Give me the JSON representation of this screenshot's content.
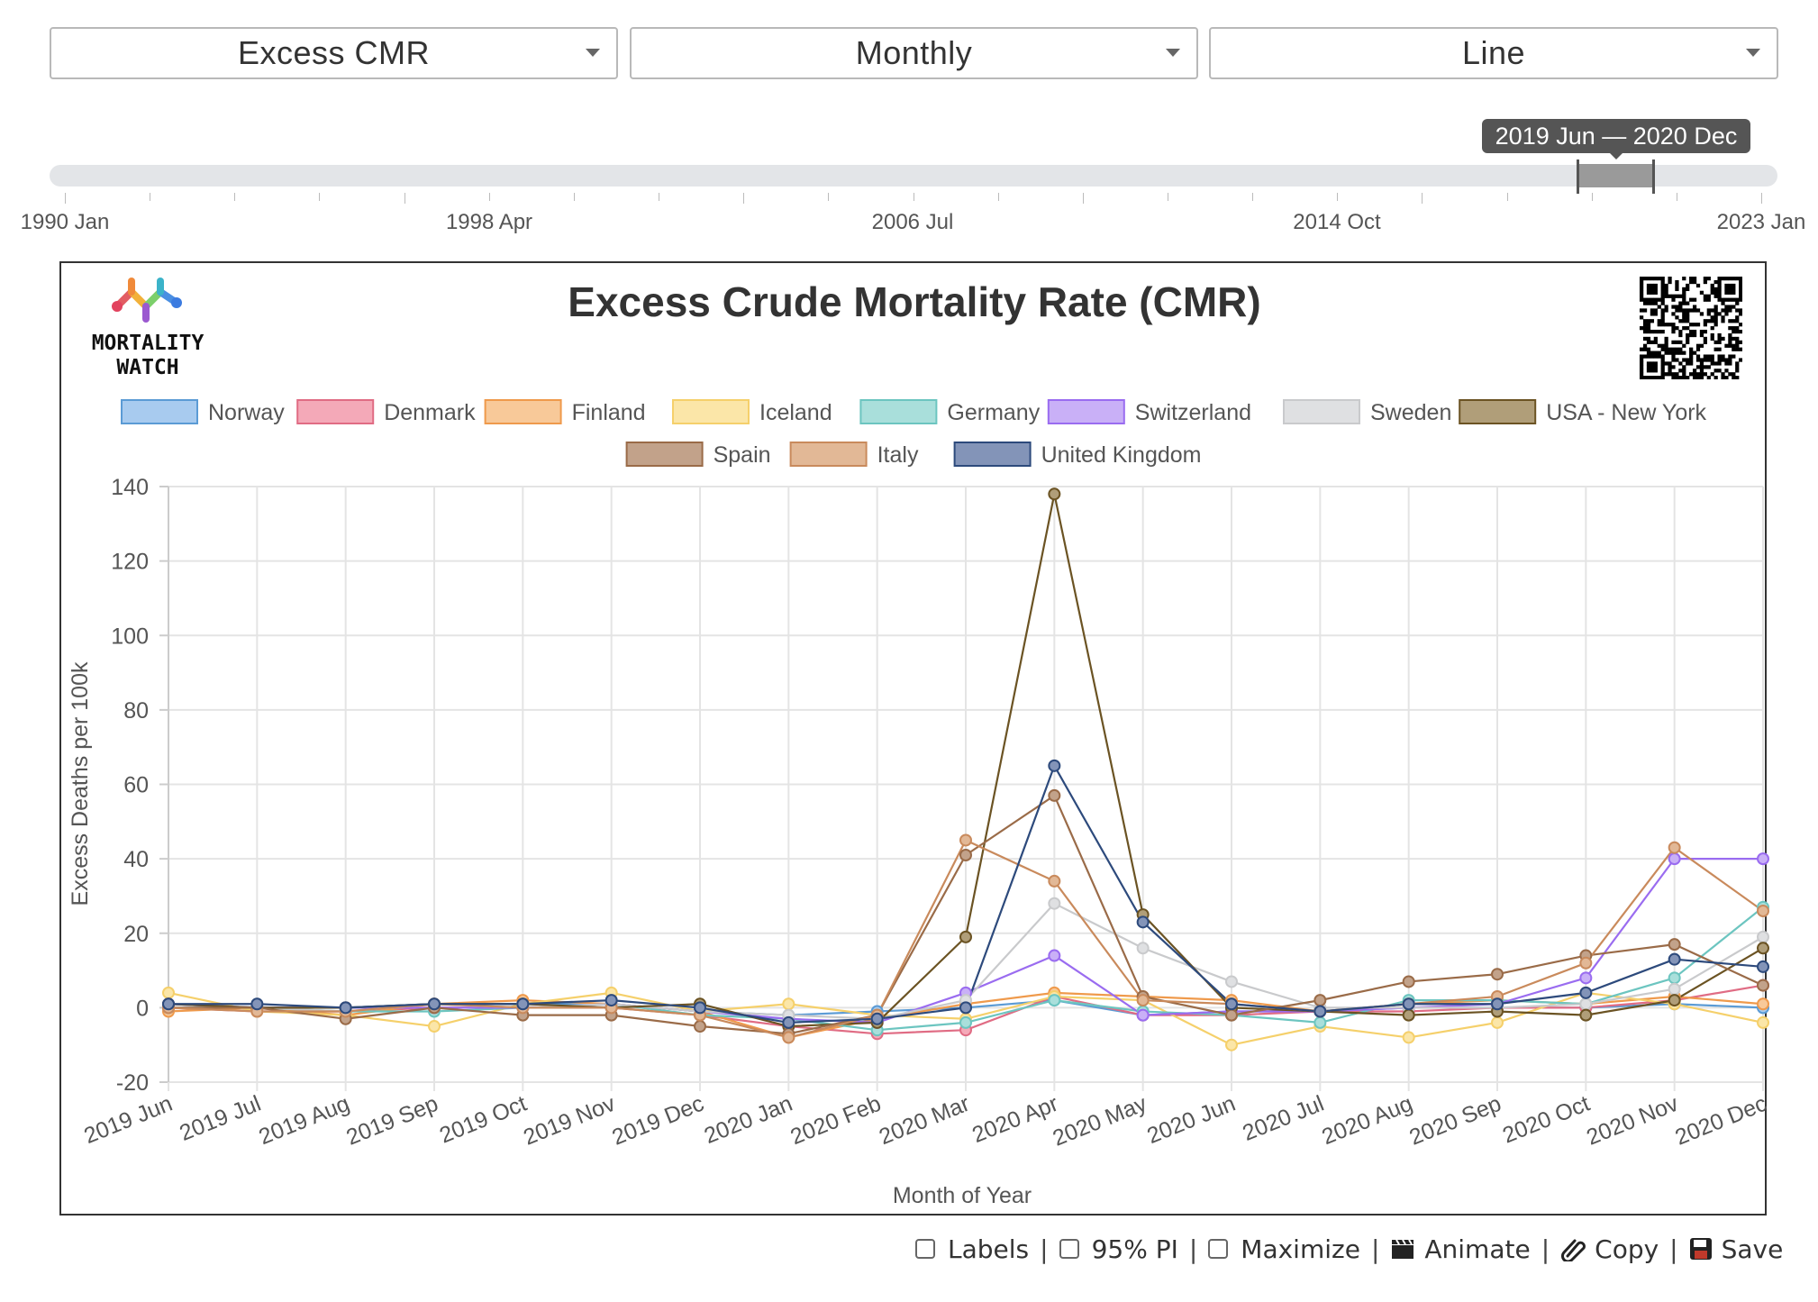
{
  "controls": {
    "metric": {
      "selected": "Excess CMR"
    },
    "period": {
      "selected": "Monthly"
    },
    "chart_type": {
      "selected": "Line"
    }
  },
  "range_slider": {
    "tooltip": "2019 Jun — 2020 Dec",
    "tick_labels": [
      "1990 Jan",
      "1998 Apr",
      "2006 Jul",
      "2014 Oct",
      "2023 Jan"
    ]
  },
  "logo": {
    "text": "MORTALITY\nWATCH"
  },
  "footer": {
    "labels": "Labels",
    "pi": "95% PI",
    "maximize": "Maximize",
    "animate": "Animate",
    "copy": "Copy",
    "save": "Save",
    "separator": "|"
  },
  "chart_data": {
    "type": "line",
    "title": "Excess Crude Mortality Rate (CMR)",
    "xlabel": "Month of Year",
    "ylabel": "Excess Deaths per 100k",
    "ylim": [
      -20,
      140
    ],
    "yticks": [
      -20,
      0,
      20,
      40,
      60,
      80,
      100,
      120,
      140
    ],
    "grid": true,
    "legend_position": "top",
    "categories": [
      "2019 Jun",
      "2019 Jul",
      "2019 Aug",
      "2019 Sep",
      "2019 Oct",
      "2019 Nov",
      "2019 Dec",
      "2020 Jan",
      "2020 Feb",
      "2020 Mar",
      "2020 Apr",
      "2020 May",
      "2020 Jun",
      "2020 Jul",
      "2020 Aug",
      "2020 Sep",
      "2020 Oct",
      "2020 Nov",
      "2020 Dec"
    ],
    "series": [
      {
        "name": "Norway",
        "color": "#5b9bd5",
        "fill": "#a8cbef",
        "values": [
          1,
          0,
          0,
          1,
          1,
          1,
          -1,
          -2,
          -1,
          0,
          2,
          -2,
          -1,
          -1,
          0,
          0,
          0,
          1,
          0
        ]
      },
      {
        "name": "Denmark",
        "color": "#e06c84",
        "fill": "#f4a9b8",
        "values": [
          0,
          -1,
          -1,
          0,
          0,
          0,
          -2,
          -5,
          -7,
          -6,
          3,
          -2,
          -2,
          -1,
          -1,
          0,
          0,
          2,
          6
        ]
      },
      {
        "name": "Finland",
        "color": "#ef9a4c",
        "fill": "#f8c999",
        "values": [
          -1,
          0,
          -2,
          1,
          2,
          1,
          -1,
          -8,
          -3,
          1,
          4,
          3,
          2,
          -1,
          1,
          2,
          1,
          3,
          1
        ]
      },
      {
        "name": "Iceland",
        "color": "#f5d06b",
        "fill": "#fbe6a8",
        "values": [
          4,
          -1,
          -2,
          -5,
          1,
          4,
          -1,
          1,
          -2,
          -3,
          3,
          2,
          -10,
          -5,
          -8,
          -4,
          4,
          1,
          -4
        ]
      },
      {
        "name": "Germany",
        "color": "#6cc5c0",
        "fill": "#a9dfdb",
        "values": [
          0,
          0,
          -1,
          -1,
          0,
          1,
          -2,
          -3,
          -6,
          -4,
          2,
          -1,
          -2,
          -4,
          2,
          2,
          1,
          8,
          27
        ]
      },
      {
        "name": "Switzerland",
        "color": "#9a6cf0",
        "fill": "#c9b0f7",
        "values": [
          1,
          0,
          0,
          0,
          0,
          1,
          -1,
          -3,
          -4,
          4,
          14,
          -2,
          -1,
          -1,
          0,
          1,
          8,
          40,
          40
        ]
      },
      {
        "name": "Sweden",
        "color": "#c9cacc",
        "fill": "#dfe0e2",
        "values": [
          0,
          0,
          -1,
          1,
          0,
          1,
          -1,
          -2,
          -3,
          2,
          28,
          16,
          7,
          0,
          0,
          0,
          1,
          5,
          19
        ]
      },
      {
        "name": "USA - New York",
        "color": "#6b5323",
        "fill": "#b09e79",
        "values": [
          1,
          0,
          0,
          1,
          1,
          0,
          1,
          -5,
          -4,
          19,
          138,
          25,
          0,
          -1,
          -2,
          -1,
          -2,
          2,
          16
        ]
      },
      {
        "name": "Spain",
        "color": "#9a6b48",
        "fill": "#c2a28a",
        "values": [
          0,
          0,
          -3,
          0,
          -2,
          -2,
          -5,
          -7,
          -2,
          41,
          57,
          3,
          -2,
          2,
          7,
          9,
          14,
          17,
          6
        ]
      },
      {
        "name": "Italy",
        "color": "#c98a5c",
        "fill": "#e2b896",
        "values": [
          0,
          -1,
          -1,
          1,
          0,
          0,
          -2,
          -8,
          -2,
          45,
          34,
          2,
          1,
          -1,
          1,
          3,
          12,
          43,
          26
        ]
      },
      {
        "name": "United Kingdom",
        "color": "#2d4a7c",
        "fill": "#8394b8",
        "values": [
          1,
          1,
          0,
          1,
          1,
          2,
          0,
          -4,
          -3,
          0,
          65,
          23,
          1,
          -1,
          1,
          1,
          4,
          13,
          11
        ]
      }
    ]
  }
}
